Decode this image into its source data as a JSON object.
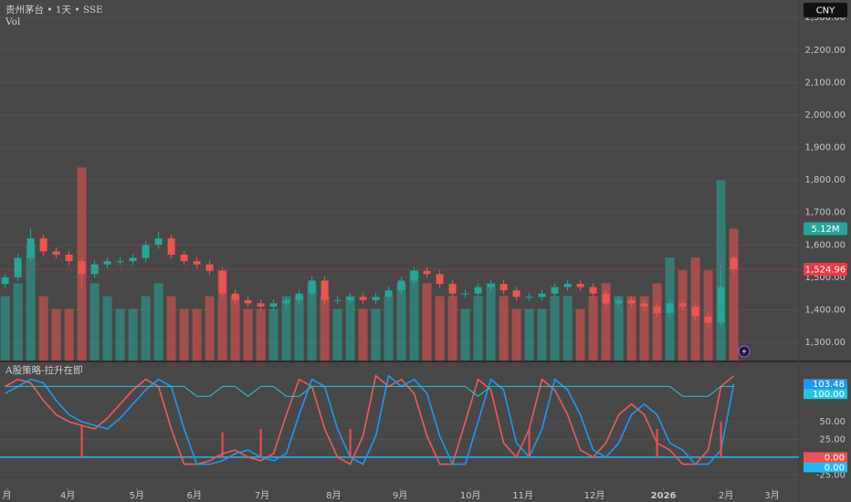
{
  "header": {
    "title": "贵州茅台 • 1天 • SSE",
    "volume_label": "Vol",
    "currency": "CNY"
  },
  "chart_data": [
    {
      "type": "candlestick",
      "open": [
        1480,
        1500,
        1560,
        1620,
        1580,
        1570,
        1550,
        1510,
        1540,
        1550,
        1550,
        1560,
        1600,
        1620,
        1570,
        1550,
        1540,
        1520,
        1450,
        1430,
        1420,
        1410,
        1420,
        1430,
        1450,
        1490,
        1430,
        1430,
        1440,
        1430,
        1440,
        1460,
        1490,
        1520,
        1510,
        1480,
        1450,
        1450,
        1470,
        1480,
        1460,
        1440,
        1440,
        1450,
        1470,
        1480,
        1470,
        1450,
        1420,
        1430,
        1420,
        1410,
        1390,
        1420,
        1410,
        1380,
        1360,
        1560
      ],
      "high": [
        1512,
        1572,
        1650,
        1632,
        1592,
        1582,
        1562,
        1552,
        1562,
        1562,
        1572,
        1612,
        1640,
        1632,
        1582,
        1562,
        1552,
        1532,
        1462,
        1442,
        1432,
        1432,
        1442,
        1462,
        1502,
        1502,
        1442,
        1452,
        1452,
        1452,
        1472,
        1502,
        1532,
        1532,
        1522,
        1492,
        1462,
        1482,
        1492,
        1492,
        1472,
        1452,
        1462,
        1482,
        1492,
        1492,
        1482,
        1462,
        1442,
        1442,
        1432,
        1422,
        1432,
        1432,
        1422,
        1392,
        1540,
        1565
      ],
      "low": [
        1468,
        1488,
        1548,
        1568,
        1558,
        1538,
        1465,
        1498,
        1528,
        1538,
        1538,
        1548,
        1588,
        1558,
        1538,
        1528,
        1508,
        1438,
        1418,
        1408,
        1398,
        1398,
        1408,
        1418,
        1438,
        1418,
        1418,
        1418,
        1418,
        1418,
        1428,
        1448,
        1478,
        1498,
        1468,
        1438,
        1438,
        1438,
        1458,
        1448,
        1428,
        1428,
        1428,
        1438,
        1458,
        1458,
        1438,
        1408,
        1408,
        1408,
        1398,
        1378,
        1378,
        1398,
        1368,
        1348,
        1350,
        1510
      ],
      "close": [
        1500,
        1560,
        1620,
        1580,
        1570,
        1550,
        1510,
        1540,
        1550,
        1550,
        1560,
        1600,
        1620,
        1570,
        1550,
        1540,
        1520,
        1450,
        1430,
        1420,
        1410,
        1420,
        1430,
        1450,
        1490,
        1430,
        1430,
        1440,
        1430,
        1440,
        1460,
        1490,
        1520,
        1510,
        1480,
        1450,
        1450,
        1470,
        1480,
        1460,
        1440,
        1440,
        1450,
        1470,
        1480,
        1470,
        1450,
        1420,
        1430,
        1420,
        1410,
        1390,
        1420,
        1410,
        1380,
        1360,
        1470,
        1524.96
      ],
      "close_last_label": "1,524.96",
      "volume": [
        2.5,
        3,
        4.5,
        2.5,
        2,
        2,
        7.5,
        3,
        2.5,
        2,
        2,
        2.5,
        3,
        2.5,
        2,
        2,
        2.5,
        3.5,
        2.5,
        2,
        2,
        2,
        2.5,
        2.5,
        3,
        2.5,
        2,
        2.5,
        2,
        2,
        2.5,
        3,
        3.5,
        3,
        2.5,
        2.5,
        2,
        2.5,
        3,
        2.5,
        2,
        2,
        2,
        2.5,
        2.5,
        2,
        2.5,
        3,
        2.5,
        2.5,
        2.5,
        3,
        4,
        3.5,
        4,
        3.5,
        7,
        5.12
      ],
      "volume_last_label": "5.12M",
      "volume_lim": [
        0,
        14
      ],
      "up_color": "#26a69a",
      "down_color": "#ef5350",
      "last_color": "#f23645",
      "xlim": [
        -0.4,
        62.1
      ],
      "ylim": [
        1244,
        2354
      ],
      "yticks": [
        {
          "value": 1300,
          "label": "1,300.00"
        },
        {
          "value": 1400,
          "label": "1,400.00"
        },
        {
          "value": 1500,
          "label": "1,500.00"
        },
        {
          "value": 1600,
          "label": "1,600.00"
        },
        {
          "value": 1700,
          "label": "1,700.00"
        },
        {
          "value": 1800,
          "label": "1,800.00"
        },
        {
          "value": 1900,
          "label": "1,900.00"
        },
        {
          "value": 2000,
          "label": "2,000.00"
        },
        {
          "value": 2100,
          "label": "2,100.00"
        },
        {
          "value": 2200,
          "label": "2,200.00"
        },
        {
          "value": 2300,
          "label": "2,300.00"
        }
      ]
    },
    {
      "type": "line",
      "title": "A股策略-拉升在即",
      "series": [
        {
          "color": "#ef5a5a",
          "values": [
            100,
            110,
            105,
            80,
            60,
            50,
            45,
            40,
            55,
            75,
            95,
            110,
            100,
            40,
            -10,
            -10,
            -5,
            5,
            10,
            0,
            -5,
            5,
            60,
            110,
            100,
            40,
            0,
            -10,
            30,
            115,
            100,
            110,
            90,
            30,
            -10,
            -10,
            50,
            110,
            95,
            20,
            0,
            40,
            110,
            95,
            60,
            10,
            0,
            20,
            60,
            75,
            60,
            20,
            10,
            -10,
            -10,
            10,
            100,
            115
          ]
        },
        {
          "color": "#2196f3",
          "values": [
            90,
            100,
            110,
            105,
            80,
            60,
            50,
            45,
            40,
            55,
            75,
            95,
            110,
            100,
            40,
            -10,
            -10,
            -5,
            5,
            10,
            0,
            -5,
            5,
            60,
            110,
            100,
            40,
            0,
            -10,
            30,
            115,
            100,
            110,
            90,
            30,
            -10,
            -10,
            50,
            110,
            95,
            20,
            0,
            40,
            110,
            95,
            60,
            10,
            0,
            20,
            60,
            75,
            60,
            20,
            10,
            -10,
            -10,
            10,
            103.48
          ],
          "last_label": "103.48"
        },
        {
          "color": "#26c6da",
          "values": [
            100,
            100,
            100,
            100,
            100,
            100,
            100,
            100,
            100,
            100,
            100,
            100,
            100,
            100,
            100,
            86,
            86,
            100,
            100,
            86,
            100,
            100,
            86,
            86,
            100,
            100,
            100,
            100,
            100,
            100,
            100,
            100,
            100,
            100,
            100,
            100,
            100,
            86,
            100,
            100,
            100,
            100,
            100,
            100,
            100,
            100,
            100,
            100,
            100,
            100,
            100,
            100,
            100,
            86,
            86,
            86,
            100,
            100
          ],
          "last_label": "100.00"
        },
        {
          "color": "#f05050",
          "style": "histogram",
          "values": [
            0,
            0,
            0,
            0,
            0,
            0,
            45,
            0,
            0,
            0,
            0,
            0,
            0,
            0,
            0,
            0,
            0,
            35,
            0,
            0,
            40,
            0,
            0,
            0,
            0,
            0,
            0,
            40,
            0,
            0,
            0,
            0,
            0,
            0,
            0,
            0,
            0,
            0,
            0,
            0,
            0,
            40,
            0,
            0,
            0,
            0,
            0,
            0,
            0,
            0,
            0,
            40,
            0,
            0,
            0,
            0,
            50,
            0
          ],
          "last_label": "0.00"
        }
      ],
      "hline": {
        "value": 0,
        "label": "0.00",
        "color": "#29b6f6"
      },
      "xlim": [
        -0.4,
        62.1
      ],
      "ylim": [
        -44,
        134
      ],
      "yticks": [
        {
          "value": 50,
          "label": "50.00"
        },
        {
          "value": 25,
          "label": "25.00"
        },
        {
          "value": -25,
          "label": "-25.00"
        }
      ],
      "xticks": [
        {
          "value": 0.14,
          "label": "月"
        },
        {
          "value": 4.9,
          "label": "4月"
        },
        {
          "value": 10.3,
          "label": "5月"
        },
        {
          "value": 14.8,
          "label": "6月"
        },
        {
          "value": 20.1,
          "label": "7月"
        },
        {
          "value": 25.7,
          "label": "8月"
        },
        {
          "value": 30.9,
          "label": "9月"
        },
        {
          "value": 36.4,
          "label": "10月"
        },
        {
          "value": 40.5,
          "label": "11月"
        },
        {
          "value": 46.1,
          "label": "12月"
        },
        {
          "value": 51.5,
          "label": "2026"
        },
        {
          "value": 56.4,
          "label": "2月"
        },
        {
          "value": 60,
          "label": "3月"
        }
      ]
    }
  ]
}
